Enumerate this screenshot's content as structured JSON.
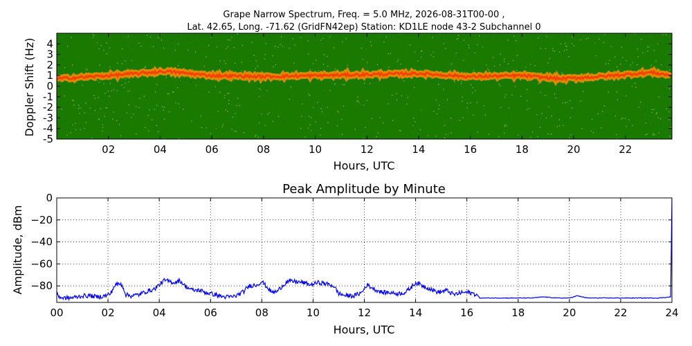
{
  "spectrogram": {
    "title_line1": "Grape Narrow Spectrum, Freq. = 5.0 MHz, 2026-08-31T00-00 ,",
    "title_line2": "Lat.  42.65, Long. -71.62 (GridFN42ep) Station: KD1LE node 43-2 Subchannel 0",
    "xlabel": "Hours, UTC",
    "ylabel": "Doppler Shift (Hz)"
  },
  "amplitude": {
    "title": "Peak Amplitude by Minute",
    "xlabel": "Hours, UTC",
    "ylabel": "Amplitude, dBm"
  },
  "colors": {
    "line": "#0000ff",
    "spectro_low": "#1a7a00",
    "spectro_mid": "#d8e000",
    "spectro_high": "#ff8c00",
    "spectro_peak": "#ff3000"
  },
  "chart_data": [
    {
      "type": "heatmap",
      "title": "Grape Narrow Spectrum, Freq. = 5.0 MHz, 2026-08-31T00-00 , Lat.  42.65, Long. -71.62 (GridFN42ep) Station: KD1LE node 43-2 Subchannel 0",
      "xlabel": "Hours, UTC",
      "ylabel": "Doppler Shift (Hz)",
      "xlim": [
        0,
        23.8
      ],
      "ylim": [
        -5,
        5
      ],
      "x_ticks": [
        2,
        4,
        6,
        8,
        10,
        12,
        14,
        16,
        18,
        20,
        22
      ],
      "x_tick_labels": [
        "02",
        "04",
        "06",
        "08",
        "10",
        "12",
        "14",
        "16",
        "18",
        "20",
        "22"
      ],
      "y_ticks": [
        4,
        3,
        2,
        1,
        0,
        -1,
        -2,
        -3,
        -4,
        -5
      ],
      "y_tick_labels": [
        "4",
        "3",
        "2",
        "1",
        "0",
        "-1",
        "-2",
        "-3",
        "-4",
        "-5"
      ],
      "carrier_doppler_hz": [
        {
          "hour": 0,
          "hz": 0.7
        },
        {
          "hour": 2,
          "hz": 1.0
        },
        {
          "hour": 4.2,
          "hz": 1.4
        },
        {
          "hour": 6,
          "hz": 1.0
        },
        {
          "hour": 8,
          "hz": 0.9
        },
        {
          "hour": 10,
          "hz": 1.0
        },
        {
          "hour": 12,
          "hz": 1.1
        },
        {
          "hour": 14,
          "hz": 1.2
        },
        {
          "hour": 16,
          "hz": 0.9
        },
        {
          "hour": 18,
          "hz": 1.0
        },
        {
          "hour": 19.5,
          "hz": 0.7
        },
        {
          "hour": 21,
          "hz": 0.9
        },
        {
          "hour": 23,
          "hz": 1.3
        },
        {
          "hour": 23.8,
          "hz": 1.0
        }
      ],
      "activity_bands": [
        {
          "start": 0.0,
          "end": 0.9,
          "level": 0.45
        },
        {
          "start": 0.9,
          "end": 1.5,
          "level": 0.3
        },
        {
          "start": 1.5,
          "end": 2.2,
          "level": 0.5
        },
        {
          "start": 2.2,
          "end": 2.6,
          "level": 0.75
        },
        {
          "start": 2.6,
          "end": 3.3,
          "level": 0.45
        },
        {
          "start": 3.3,
          "end": 4.0,
          "level": 0.6
        },
        {
          "start": 4.0,
          "end": 4.8,
          "level": 0.9
        },
        {
          "start": 4.8,
          "end": 5.5,
          "level": 0.5
        },
        {
          "start": 5.5,
          "end": 6.0,
          "level": 0.4
        },
        {
          "start": 6.0,
          "end": 6.5,
          "level": 0.55
        },
        {
          "start": 6.5,
          "end": 7.0,
          "level": 0.3
        },
        {
          "start": 7.0,
          "end": 7.8,
          "level": 0.85
        },
        {
          "start": 7.8,
          "end": 8.2,
          "level": 0.6
        },
        {
          "start": 8.2,
          "end": 8.6,
          "level": 0.35
        },
        {
          "start": 8.6,
          "end": 9.5,
          "level": 0.95
        },
        {
          "start": 9.5,
          "end": 10.3,
          "level": 0.6
        },
        {
          "start": 10.3,
          "end": 10.9,
          "level": 0.8
        },
        {
          "start": 10.9,
          "end": 11.6,
          "level": 0.35
        },
        {
          "start": 11.6,
          "end": 12.3,
          "level": 0.6
        },
        {
          "start": 12.3,
          "end": 13.2,
          "level": 0.5
        },
        {
          "start": 13.2,
          "end": 13.7,
          "level": 0.45
        },
        {
          "start": 13.7,
          "end": 14.2,
          "level": 0.8
        },
        {
          "start": 14.2,
          "end": 15.1,
          "level": 0.55
        },
        {
          "start": 15.1,
          "end": 15.7,
          "level": 0.45
        },
        {
          "start": 15.7,
          "end": 16.2,
          "level": 0.55
        },
        {
          "start": 16.2,
          "end": 23.8,
          "level": 0.05
        }
      ]
    },
    {
      "type": "line",
      "title": "Peak Amplitude by Minute",
      "xlabel": "Hours, UTC",
      "ylabel": "Amplitude, dBm",
      "xlim": [
        0,
        24
      ],
      "ylim": [
        -95,
        0
      ],
      "grid": true,
      "x_ticks": [
        0,
        2,
        4,
        6,
        8,
        10,
        12,
        14,
        16,
        18,
        20,
        22,
        24
      ],
      "x_tick_labels": [
        "00",
        "02",
        "04",
        "06",
        "08",
        "10",
        "12",
        "14",
        "16",
        "18",
        "20",
        "22",
        "24"
      ],
      "y_ticks": [
        0,
        -20,
        -40,
        -60,
        -80
      ],
      "y_tick_labels": [
        "0",
        "−20",
        "−40",
        "−60",
        "−80"
      ],
      "series": [
        {
          "x": [
            0,
            0.2,
            0.5,
            0.8,
            1.0,
            1.3,
            1.6,
            1.9,
            2.1,
            2.25,
            2.4,
            2.55,
            2.7,
            2.9,
            3.2,
            3.5,
            3.8,
            4.0,
            4.2,
            4.4,
            4.6,
            4.8,
            5.0,
            5.3,
            5.6,
            5.8,
            6.0,
            6.2,
            6.5,
            6.8,
            7.0,
            7.3,
            7.5,
            7.8,
            8.0,
            8.2,
            8.4,
            8.6,
            8.8,
            9.0,
            9.3,
            9.6,
            9.9,
            10.2,
            10.5,
            10.8,
            11.0,
            11.3,
            11.6,
            11.9,
            12.1,
            12.4,
            12.7,
            13.0,
            13.3,
            13.6,
            13.8,
            14.0,
            14.3,
            14.6,
            14.9,
            15.2,
            15.5,
            15.8,
            16.1,
            16.4,
            16.5,
            17.5,
            18.5,
            19.0,
            19.5,
            20.0,
            20.3,
            20.5,
            20.7,
            21.5,
            22.5,
            23.5,
            23.95,
            24.0
          ],
          "y": [
            -88,
            -91,
            -91,
            -90,
            -89,
            -89,
            -90,
            -89,
            -87,
            -80,
            -78,
            -79,
            -88,
            -89,
            -88,
            -85,
            -83,
            -79,
            -75,
            -76,
            -77,
            -75,
            -80,
            -84,
            -84,
            -86,
            -87,
            -88,
            -90,
            -90,
            -89,
            -85,
            -80,
            -79,
            -76,
            -81,
            -86,
            -85,
            -80,
            -76,
            -76,
            -77,
            -79,
            -77,
            -78,
            -80,
            -87,
            -89,
            -89,
            -86,
            -79,
            -83,
            -86,
            -86,
            -87,
            -86,
            -82,
            -77,
            -80,
            -83,
            -86,
            -84,
            -88,
            -86,
            -86,
            -88,
            -91,
            -91,
            -91,
            -90,
            -91,
            -91,
            -89,
            -90,
            -91,
            -91,
            -91,
            -91,
            -90,
            0
          ]
        }
      ]
    }
  ]
}
